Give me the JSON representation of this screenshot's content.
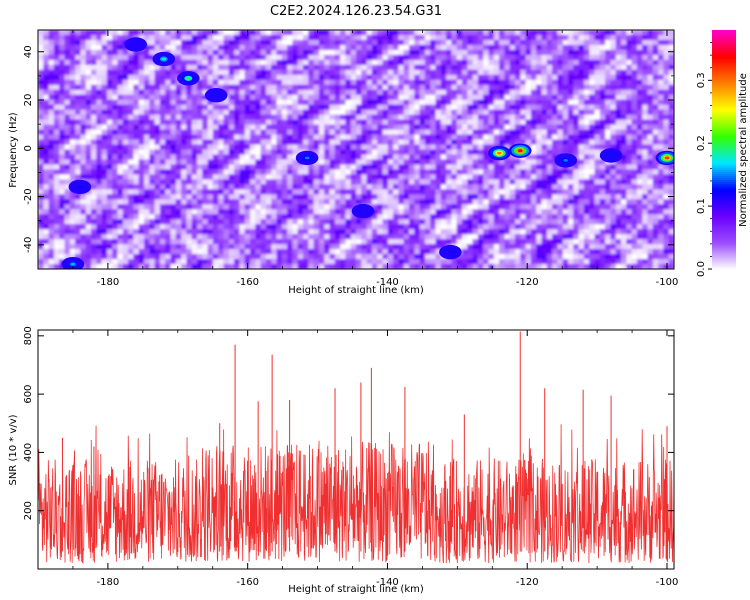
{
  "title": "C2E2.2024.126.23.54.G31",
  "chart_data": [
    {
      "type": "heatmap",
      "xlabel": "Height of straight line (km)",
      "ylabel": "Frequency (Hz)",
      "xlim": [
        -190,
        -99
      ],
      "ylim": [
        -50,
        49
      ],
      "xticks": [
        -180,
        -160,
        -140,
        -120,
        -100
      ],
      "yticks": [
        -40,
        -20,
        0,
        20,
        40
      ],
      "colorbar": {
        "label": "Normalized spectral amplitude",
        "range": [
          0,
          0.38
        ],
        "ticks": [
          "0.0",
          "0.1",
          "0.2",
          "0.3"
        ],
        "tick_values": [
          0.0,
          0.1,
          0.2,
          0.3
        ],
        "colormap": [
          "#ffffff",
          "#9b4dff",
          "#6a00ff",
          "#0000ff",
          "#00e8ff",
          "#33ff00",
          "#ffff00",
          "#ff8000",
          "#ff0000",
          "#ff00cc"
        ]
      },
      "hotspots": [
        {
          "x": -121,
          "y": -1,
          "value": 0.34
        },
        {
          "x": -124,
          "y": -2,
          "value": 0.3
        },
        {
          "x": -100,
          "y": -4,
          "value": 0.32
        },
        {
          "x": -168.5,
          "y": 29,
          "value": 0.2
        },
        {
          "x": -172,
          "y": 37,
          "value": 0.18
        },
        {
          "x": -185,
          "y": -48,
          "value": 0.16
        },
        {
          "x": -151.5,
          "y": -4,
          "value": 0.15
        },
        {
          "x": -114.5,
          "y": -5,
          "value": 0.15
        },
        {
          "x": -164.5,
          "y": 22,
          "value": 0.13
        },
        {
          "x": -108,
          "y": -3,
          "value": 0.13
        },
        {
          "x": -131,
          "y": -43,
          "value": 0.12
        },
        {
          "x": -143.5,
          "y": -26,
          "value": 0.11
        },
        {
          "x": -184,
          "y": -16,
          "value": 0.12
        },
        {
          "x": -176,
          "y": 43,
          "value": 0.11
        }
      ],
      "background_level": 0.07
    },
    {
      "type": "line",
      "xlabel": "Height of straight line (km)",
      "ylabel": "SNR (10 * v/v)",
      "xlim": [
        -190,
        -99
      ],
      "ylim": [
        0,
        820
      ],
      "xticks": [
        -180,
        -160,
        -140,
        -120,
        -100
      ],
      "yticks": [
        200,
        400,
        600,
        800
      ],
      "series_color": "#f03030",
      "baseline_range": [
        20,
        380
      ],
      "peaks": [
        {
          "x": -121,
          "y": 815
        },
        {
          "x": -161.8,
          "y": 770
        },
        {
          "x": -156.5,
          "y": 735
        },
        {
          "x": -142.3,
          "y": 690
        },
        {
          "x": -143.8,
          "y": 640
        },
        {
          "x": -137.5,
          "y": 625
        },
        {
          "x": -147.5,
          "y": 620
        },
        {
          "x": -117.5,
          "y": 620
        },
        {
          "x": -112,
          "y": 615
        },
        {
          "x": -108,
          "y": 595
        },
        {
          "x": -154,
          "y": 580
        },
        {
          "x": -129,
          "y": 530
        },
        {
          "x": -164,
          "y": 500
        },
        {
          "x": -158.5,
          "y": 575
        },
        {
          "x": -100,
          "y": 490
        },
        {
          "x": -186.5,
          "y": 450
        },
        {
          "x": -182,
          "y": 420
        }
      ]
    }
  ]
}
